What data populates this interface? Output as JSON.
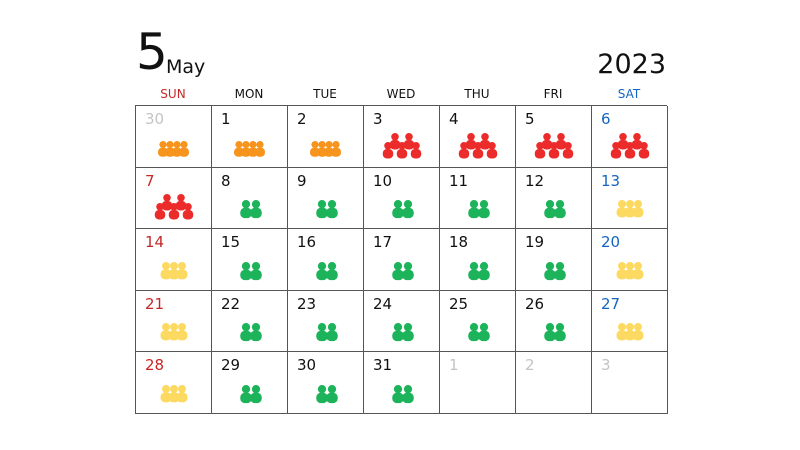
{
  "header": {
    "month_number": "5",
    "month_name": "May",
    "year": "2023"
  },
  "weekdays": [
    "SUN",
    "MON",
    "TUE",
    "WED",
    "THU",
    "FRI",
    "SAT"
  ],
  "colors": {
    "sunday": "#c62828",
    "saturday": "#1565c0",
    "other_month": "#c4c4c4",
    "crowd_level_orange": "#f7941d",
    "crowd_level_red": "#ec2b2b",
    "crowd_level_green": "#1cb35a",
    "crowd_level_yellow": "#fcd960"
  },
  "legend_icons": {
    "orange": "people-queue-icon",
    "red": "large-crowd-icon",
    "green": "two-people-icon",
    "yellow": "small-group-icon"
  },
  "weeks": [
    [
      {
        "day": "30",
        "other": true,
        "crowd": "orange"
      },
      {
        "day": "1",
        "other": false,
        "crowd": "orange"
      },
      {
        "day": "2",
        "other": false,
        "crowd": "orange"
      },
      {
        "day": "3",
        "other": false,
        "crowd": "red"
      },
      {
        "day": "4",
        "other": false,
        "crowd": "red"
      },
      {
        "day": "5",
        "other": false,
        "crowd": "red"
      },
      {
        "day": "6",
        "other": false,
        "crowd": "red"
      }
    ],
    [
      {
        "day": "7",
        "other": false,
        "crowd": "red"
      },
      {
        "day": "8",
        "other": false,
        "crowd": "green"
      },
      {
        "day": "9",
        "other": false,
        "crowd": "green"
      },
      {
        "day": "10",
        "other": false,
        "crowd": "green"
      },
      {
        "day": "11",
        "other": false,
        "crowd": "green"
      },
      {
        "day": "12",
        "other": false,
        "crowd": "green"
      },
      {
        "day": "13",
        "other": false,
        "crowd": "yellow"
      }
    ],
    [
      {
        "day": "14",
        "other": false,
        "crowd": "yellow"
      },
      {
        "day": "15",
        "other": false,
        "crowd": "green"
      },
      {
        "day": "16",
        "other": false,
        "crowd": "green"
      },
      {
        "day": "17",
        "other": false,
        "crowd": "green"
      },
      {
        "day": "18",
        "other": false,
        "crowd": "green"
      },
      {
        "day": "19",
        "other": false,
        "crowd": "green"
      },
      {
        "day": "20",
        "other": false,
        "crowd": "yellow"
      }
    ],
    [
      {
        "day": "21",
        "other": false,
        "crowd": "yellow"
      },
      {
        "day": "22",
        "other": false,
        "crowd": "green"
      },
      {
        "day": "23",
        "other": false,
        "crowd": "green"
      },
      {
        "day": "24",
        "other": false,
        "crowd": "green"
      },
      {
        "day": "25",
        "other": false,
        "crowd": "green"
      },
      {
        "day": "26",
        "other": false,
        "crowd": "green"
      },
      {
        "day": "27",
        "other": false,
        "crowd": "yellow"
      }
    ],
    [
      {
        "day": "28",
        "other": false,
        "crowd": "yellow"
      },
      {
        "day": "29",
        "other": false,
        "crowd": "green"
      },
      {
        "day": "30",
        "other": false,
        "crowd": "green"
      },
      {
        "day": "31",
        "other": false,
        "crowd": "green"
      },
      {
        "day": "1",
        "other": true,
        "crowd": null
      },
      {
        "day": "2",
        "other": true,
        "crowd": null
      },
      {
        "day": "3",
        "other": true,
        "crowd": null
      }
    ]
  ]
}
